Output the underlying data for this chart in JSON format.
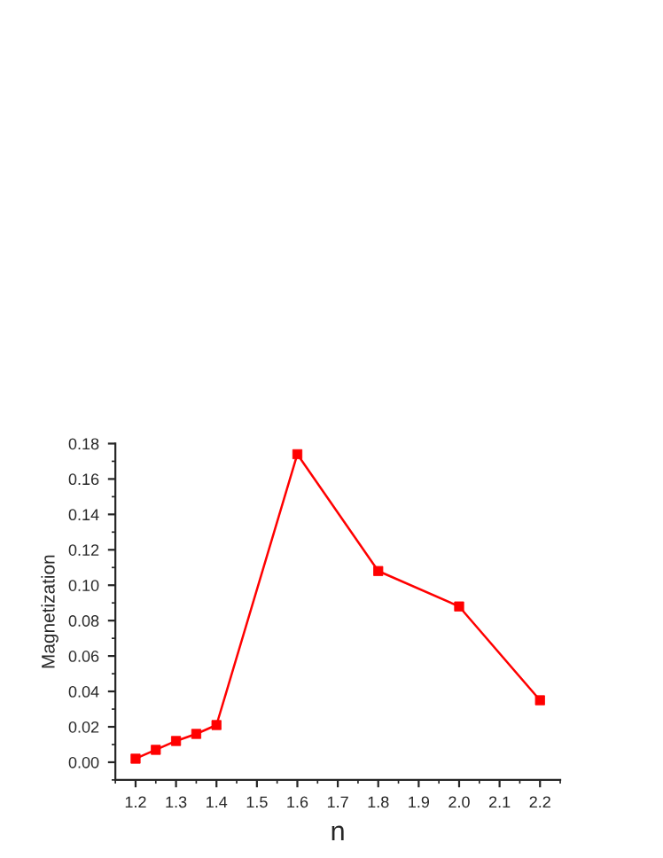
{
  "chart_data": {
    "type": "line",
    "xlabel": "n",
    "ylabel": "Magnetization",
    "x": [
      1.2,
      1.25,
      1.3,
      1.35,
      1.4,
      1.6,
      1.8,
      2.0,
      2.2
    ],
    "series": [
      {
        "color": "#ff0000",
        "values": [
          0.002,
          0.007,
          0.012,
          0.016,
          0.021,
          0.174,
          0.108,
          0.088,
          0.035
        ]
      }
    ],
    "xlim": [
      1.15,
      2.25
    ],
    "ylim": [
      -0.01,
      0.18
    ],
    "xticks": [
      {
        "value": 1.2,
        "label": "1.2"
      },
      {
        "value": 1.3,
        "label": "1.3"
      },
      {
        "value": 1.4,
        "label": "1.4"
      },
      {
        "value": 1.5,
        "label": "1.5"
      },
      {
        "value": 1.6,
        "label": "1.6"
      },
      {
        "value": 1.7,
        "label": "1.7"
      },
      {
        "value": 1.8,
        "label": "1.8"
      },
      {
        "value": 1.9,
        "label": "1.9"
      },
      {
        "value": 2.0,
        "label": "2.0"
      },
      {
        "value": 2.1,
        "label": "2.1"
      },
      {
        "value": 2.2,
        "label": "2.2"
      }
    ],
    "yticks": [
      {
        "value": 0,
        "label": "0.00"
      },
      {
        "value": 0.02,
        "label": "0.02"
      },
      {
        "value": 0.04,
        "label": "0.04"
      },
      {
        "value": 0.06,
        "label": "0.06"
      },
      {
        "value": 0.08,
        "label": "0.08"
      },
      {
        "value": 0.1,
        "label": "0.10"
      },
      {
        "value": 0.12,
        "label": "0.12"
      },
      {
        "value": 0.14,
        "label": "0.14"
      },
      {
        "value": 0.16,
        "label": "0.16"
      },
      {
        "value": 0.18,
        "label": "0.18"
      }
    ],
    "marker": "square",
    "line_style": "solid",
    "grid": false,
    "legend": false
  }
}
